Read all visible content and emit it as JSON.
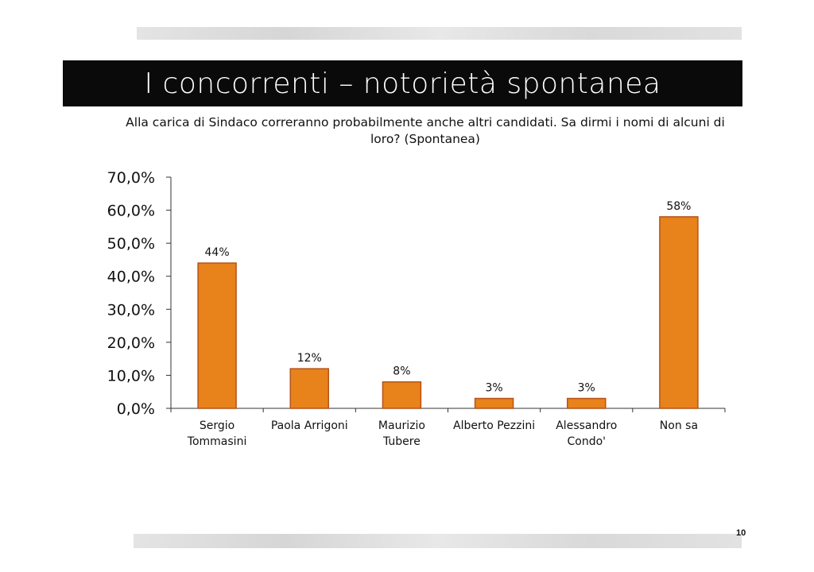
{
  "slide": {
    "title": "I concorrenti – notorietà spontanea",
    "subtitle": "Alla carica di Sindaco correranno probabilmente anche altri candidati. Sa dirmi i nomi di alcuni di loro? (Spontanea)",
    "page_number": "10",
    "bar_color": "#E8821A",
    "bar_border": "#B5541A"
  },
  "chart_data": {
    "type": "bar",
    "title": "I concorrenti – notorietà spontanea",
    "categories": [
      [
        "Sergio",
        "Tommasini"
      ],
      [
        "Paola Arrigoni"
      ],
      [
        "Maurizio",
        "Tubere"
      ],
      [
        "Alberto Pezzini"
      ],
      [
        "Alessandro",
        "Condo'"
      ],
      [
        "Non sa"
      ]
    ],
    "values": [
      44,
      12,
      8,
      3,
      3,
      58
    ],
    "data_labels": [
      "44%",
      "12%",
      "8%",
      "3%",
      "3%",
      "58%"
    ],
    "y_ticks": [
      0,
      10,
      20,
      30,
      40,
      50,
      60,
      70
    ],
    "y_tick_labels": [
      "0,0%",
      "10,0%",
      "20,0%",
      "30,0%",
      "40,0%",
      "50,0%",
      "60,0%",
      "70,0%"
    ],
    "ylim": [
      0,
      70
    ],
    "xlabel": "",
    "ylabel": "",
    "grid": false,
    "legend": "none"
  }
}
